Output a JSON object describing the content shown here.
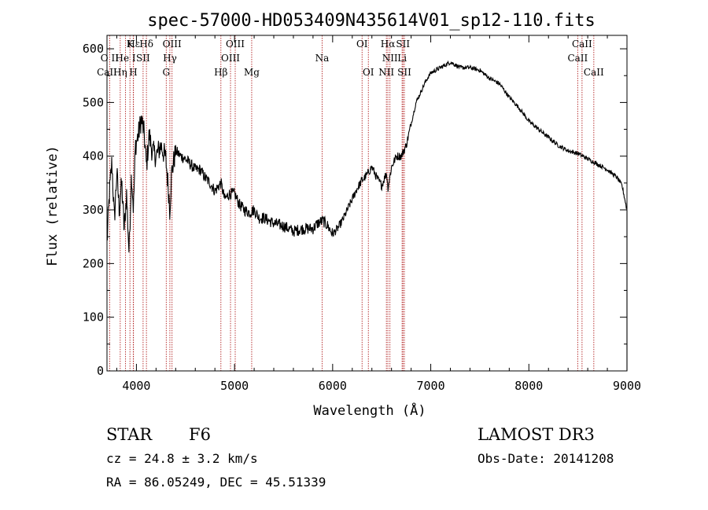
{
  "chart_data": {
    "type": "line",
    "title": "spec-57000-HD053409N435614V01_sp12-110.fits",
    "xlabel": "Wavelength (Å)",
    "ylabel": "Flux (relative)",
    "xlim": [
      3700,
      9000
    ],
    "ylim": [
      0,
      625
    ],
    "xticks": [
      4000,
      5000,
      6000,
      7000,
      8000,
      9000
    ],
    "yticks": [
      0,
      100,
      200,
      300,
      400,
      500,
      600
    ],
    "line_color": "#000000",
    "marker_color": "#b22222",
    "series": [
      {
        "name": "flux",
        "x": [
          3700,
          3725,
          3750,
          3775,
          3800,
          3825,
          3850,
          3875,
          3900,
          3925,
          3950,
          3970,
          3990,
          4020,
          4050,
          4080,
          4102,
          4130,
          4160,
          4200,
          4250,
          4300,
          4330,
          4340,
          4360,
          4400,
          4450,
          4500,
          4550,
          4600,
          4650,
          4700,
          4750,
          4800,
          4861,
          4900,
          4950,
          5000,
          5050,
          5100,
          5150,
          5200,
          5250,
          5300,
          5400,
          5500,
          5600,
          5700,
          5800,
          5850,
          5900,
          5950,
          6000,
          6050,
          6100,
          6150,
          6200,
          6250,
          6300,
          6350,
          6400,
          6450,
          6500,
          6550,
          6563,
          6600,
          6650,
          6700,
          6750,
          6800,
          6850,
          6900,
          6950,
          7000,
          7050,
          7100,
          7150,
          7200,
          7300,
          7400,
          7500,
          7600,
          7700,
          7800,
          7900,
          8000,
          8100,
          8200,
          8300,
          8400,
          8500,
          8600,
          8700,
          8800,
          8900,
          8950,
          9000
        ],
        "y": [
          240,
          330,
          390,
          280,
          370,
          300,
          350,
          260,
          330,
          220,
          370,
          300,
          420,
          440,
          470,
          440,
          380,
          440,
          410,
          400,
          420,
          395,
          330,
          300,
          370,
          410,
          400,
          395,
          385,
          375,
          375,
          360,
          350,
          335,
          350,
          320,
          330,
          330,
          310,
          300,
          295,
          300,
          285,
          285,
          275,
          270,
          260,
          265,
          265,
          275,
          280,
          270,
          255,
          265,
          280,
          300,
          320,
          340,
          355,
          365,
          380,
          360,
          345,
          370,
          340,
          380,
          400,
          400,
          420,
          460,
          500,
          520,
          540,
          555,
          560,
          565,
          570,
          575,
          565,
          565,
          560,
          545,
          535,
          510,
          490,
          465,
          450,
          435,
          420,
          410,
          405,
          395,
          385,
          375,
          360,
          345,
          300
        ]
      }
    ],
    "lines": [
      {
        "label": "Hε",
        "x": 3970,
        "row": 1
      },
      {
        "label": "O II",
        "x": 3727,
        "row": 2
      },
      {
        "label": "CaII",
        "x": 3700,
        "row": 3
      },
      {
        "label": "K",
        "x": 3934,
        "row": 1
      },
      {
        "label": "He I",
        "x": 3889,
        "row": 2
      },
      {
        "label": "Hη",
        "x": 3835,
        "row": 3
      },
      {
        "label": "H",
        "x": 3968,
        "row": 3
      },
      {
        "label": "SII",
        "x": 4068,
        "row": 2
      },
      {
        "label": "Hδ",
        "x": 4102,
        "row": 1
      },
      {
        "label": "OIII",
        "x": 4363,
        "row": 1
      },
      {
        "label": "Hγ",
        "x": 4341,
        "row": 2
      },
      {
        "label": "G",
        "x": 4304,
        "row": 3
      },
      {
        "label": "Hβ",
        "x": 4861,
        "row": 3
      },
      {
        "label": "OIII",
        "x": 5007,
        "row": 1
      },
      {
        "label": "OIII",
        "x": 4959,
        "row": 2
      },
      {
        "label": "Mg",
        "x": 5175,
        "row": 3
      },
      {
        "label": "Na",
        "x": 5893,
        "row": 2
      },
      {
        "label": "OI",
        "x": 6300,
        "row": 1
      },
      {
        "label": "OI",
        "x": 6364,
        "row": 3
      },
      {
        "label": "Hα",
        "x": 6563,
        "row": 1
      },
      {
        "label": "NII",
        "x": 6584,
        "row": 2
      },
      {
        "label": "NII",
        "x": 6548,
        "row": 3
      },
      {
        "label": "SII",
        "x": 6717,
        "row": 1
      },
      {
        "label": "Li",
        "x": 6708,
        "row": 2
      },
      {
        "label": "SII",
        "x": 6731,
        "row": 3
      },
      {
        "label": "CaII",
        "x": 8542,
        "row": 1
      },
      {
        "label": "CaII",
        "x": 8498,
        "row": 2
      },
      {
        "label": "CaII",
        "x": 8662,
        "row": 3
      }
    ]
  },
  "info": {
    "object_class": "STAR",
    "subclass": "F6",
    "survey": "LAMOST DR3",
    "cz": "cz = 24.8 ± 3.2 km/s",
    "obs_date": "Obs-Date: 20141208",
    "coords": "RA =  86.05249, DEC =  45.51339"
  }
}
